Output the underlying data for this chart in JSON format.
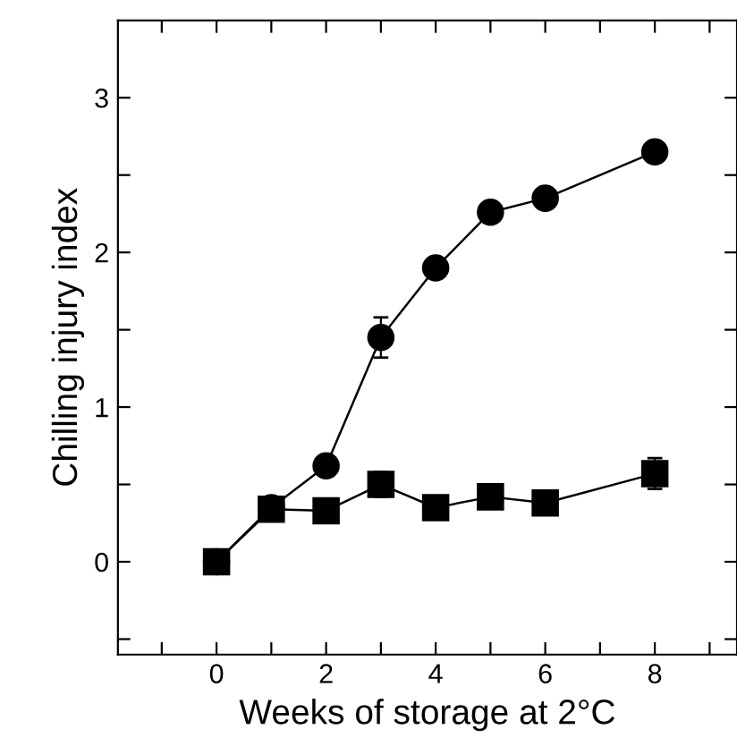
{
  "chart_data": {
    "type": "line",
    "xlabel": "Weeks of storage at 2°C",
    "ylabel": "Chilling injury index",
    "xlim": [
      -1.8,
      9.5
    ],
    "ylim": [
      -0.6,
      3.5
    ],
    "xticks": [
      {
        "value": -1,
        "label": null
      },
      0,
      {
        "value": 1,
        "label": null
      },
      2,
      {
        "value": 3,
        "label": null
      },
      4,
      {
        "value": 5,
        "label": null
      },
      6,
      {
        "value": 7,
        "label": null
      },
      8,
      {
        "value": 9,
        "label": null
      }
    ],
    "yticks": [
      {
        "value": -0.5,
        "label": null
      },
      0,
      {
        "value": 0.5,
        "label": null
      },
      1,
      {
        "value": 1.5,
        "label": null
      },
      2,
      {
        "value": 2.5,
        "label": null
      },
      3
    ],
    "grid": false,
    "legend": false,
    "line_style": "solid",
    "series": [
      {
        "color": "#000000",
        "marker": "circle",
        "x": [
          0,
          1,
          2,
          3,
          4,
          5,
          6,
          8
        ],
        "values": [
          0,
          0.35,
          0.62,
          1.45,
          1.9,
          2.26,
          2.35,
          2.65
        ],
        "errors": [
          null,
          null,
          null,
          0.13,
          0.05,
          null,
          null,
          null
        ]
      },
      {
        "color": "#000000",
        "marker": "square",
        "x": [
          0,
          1,
          2,
          3,
          4,
          5,
          6,
          8
        ],
        "values": [
          0,
          0.34,
          0.33,
          0.5,
          0.35,
          0.42,
          0.38,
          0.57
        ],
        "errors": [
          null,
          null,
          0.05,
          0.08,
          null,
          0.07,
          0.06,
          0.1
        ]
      }
    ]
  }
}
